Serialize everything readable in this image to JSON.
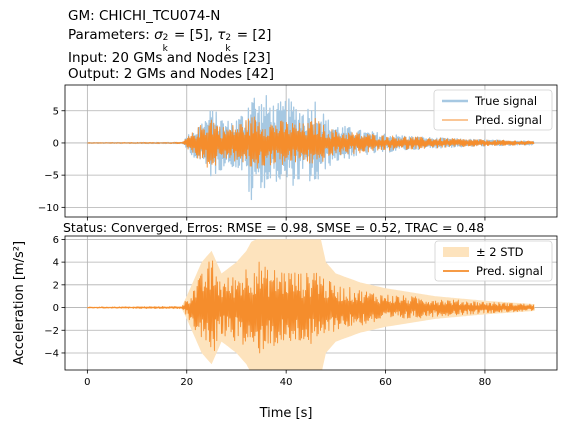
{
  "header": {
    "line1": "GM: CHICHI_TCU074-N",
    "line2_prefix": "Parameters: ",
    "line2_sigma": "σ",
    "line2_sub_k": "k",
    "line2_sup_2": "2",
    "line2_mid": " = [5], ",
    "line2_tau": "τ",
    "line2_suffix": " = [2]",
    "line3": "Input: 20 GMs and Nodes [23]",
    "line4": "Output: 2 GMs and Nodes [42]"
  },
  "chart_data": [
    {
      "type": "line",
      "panel": "top",
      "xlim": [
        -4.5,
        94.5
      ],
      "ylim": [
        -11.5,
        9
      ],
      "yticks": [
        -10,
        -5,
        0,
        5
      ],
      "xticks": [
        0,
        20,
        40,
        60,
        80
      ],
      "grid": true,
      "legend_placement": "top-right",
      "series": [
        {
          "name": "True signal",
          "color": "#a6c8e2",
          "envelope": {
            "t": [
              0,
              19,
              20,
              23,
              25,
              28,
              30,
              32,
              33,
              34,
              36,
              38,
              40,
              42,
              44,
              46,
              48,
              50,
              55,
              60,
              65,
              70,
              80,
              90
            ],
            "amp": [
              0.05,
              0.1,
              1.0,
              3.5,
              5.5,
              3.5,
              4,
              5.5,
              10.5,
              6.5,
              7.5,
              6,
              7,
              6.5,
              5.5,
              7.5,
              4,
              3,
              2,
              1.5,
              1.1,
              0.8,
              0.5,
              0.3
            ]
          }
        },
        {
          "name": "Pred. signal",
          "color": "#f58d2c",
          "envelope": {
            "t": [
              0,
              19,
              20,
              23,
              25,
              27,
              30,
              32,
              34,
              36,
              40,
              44,
              46,
              48,
              50,
              55,
              60,
              70,
              80,
              90
            ],
            "amp": [
              0.05,
              0.1,
              0.8,
              3,
              4.5,
              2.5,
              3,
              3.8,
              4.5,
              3.5,
              3.5,
              3,
              4,
              2.5,
              2,
              1.6,
              1.2,
              0.8,
              0.5,
              0.3
            ]
          }
        }
      ],
      "status_title": "Status: Converged, Erros: RMSE = 0.98, SMSE = 0.52, TRAC = 0.48"
    },
    {
      "type": "line",
      "panel": "bottom",
      "xlim": [
        -4.5,
        94.5
      ],
      "ylim": [
        -5.5,
        6.3
      ],
      "yticks": [
        -4,
        -2,
        0,
        2,
        4,
        6
      ],
      "xticks": [
        0,
        20,
        40,
        60,
        80
      ],
      "grid": true,
      "legend_placement": "top-right",
      "series": [
        {
          "name": "± 2 STD",
          "color": "#fde3bd",
          "band": {
            "t": [
              0,
              19,
              20,
              23,
              25,
              27,
              30,
              32,
              33,
              34,
              47,
              48,
              50,
              55,
              60,
              70,
              80,
              90
            ],
            "amp": [
              0.05,
              0.1,
              1,
              4,
              5,
              3,
              4,
              5,
              5.8,
              6,
              6,
              4,
              3,
              2.2,
              1.7,
              1,
              0.6,
              0.3
            ]
          }
        },
        {
          "name": "Pred. signal",
          "color": "#f58d2c",
          "envelope": {
            "t": [
              0,
              19,
              20,
              23,
              25,
              27,
              30,
              32,
              34,
              36,
              40,
              44,
              46,
              48,
              50,
              55,
              60,
              70,
              80,
              90
            ],
            "amp": [
              0.05,
              0.1,
              0.8,
              3,
              4.5,
              2.5,
              3,
              3.8,
              4.5,
              3.5,
              3.5,
              3,
              4,
              2.5,
              2,
              1.6,
              1.2,
              0.8,
              0.5,
              0.3
            ]
          }
        }
      ]
    }
  ],
  "axes": {
    "ylabel": "Acceleration [m/s²]",
    "xlabel": "Time [s]"
  }
}
